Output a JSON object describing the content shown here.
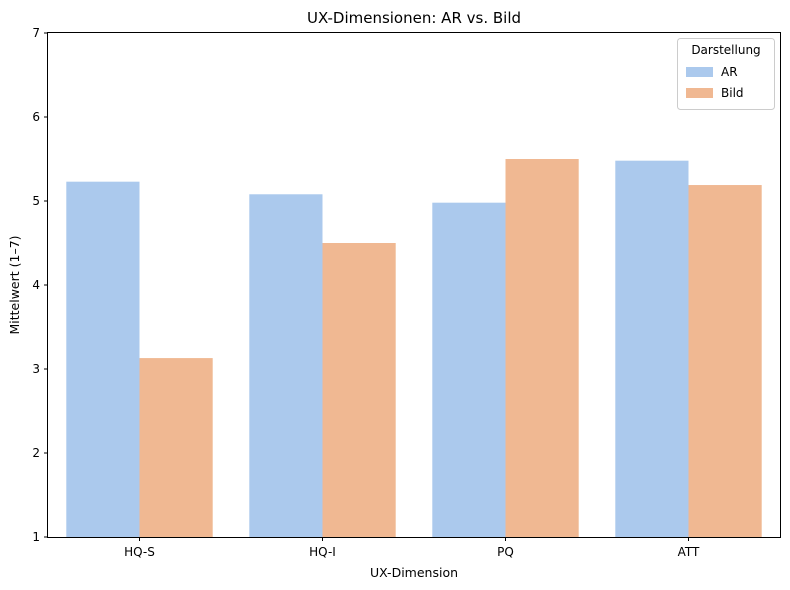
{
  "chart_data": {
    "type": "bar",
    "title": "UX-Dimensionen: AR vs. Bild",
    "xlabel": "UX-Dimension",
    "ylabel": "Mittelwert (1–7)",
    "categories": [
      "HQ-S",
      "HQ-I",
      "PQ",
      "ATT"
    ],
    "ylim": [
      1,
      7
    ],
    "yticks": [
      1,
      2,
      3,
      4,
      5,
      6,
      7
    ],
    "grid": false,
    "legend": {
      "title": "Darstellung",
      "position": "top-right"
    },
    "series": [
      {
        "name": "AR",
        "color": "#abc9ed",
        "values": [
          5.23,
          5.08,
          4.98,
          5.48
        ]
      },
      {
        "name": "Bild",
        "color": "#f0b892",
        "values": [
          3.13,
          4.5,
          5.5,
          5.19
        ]
      }
    ]
  }
}
